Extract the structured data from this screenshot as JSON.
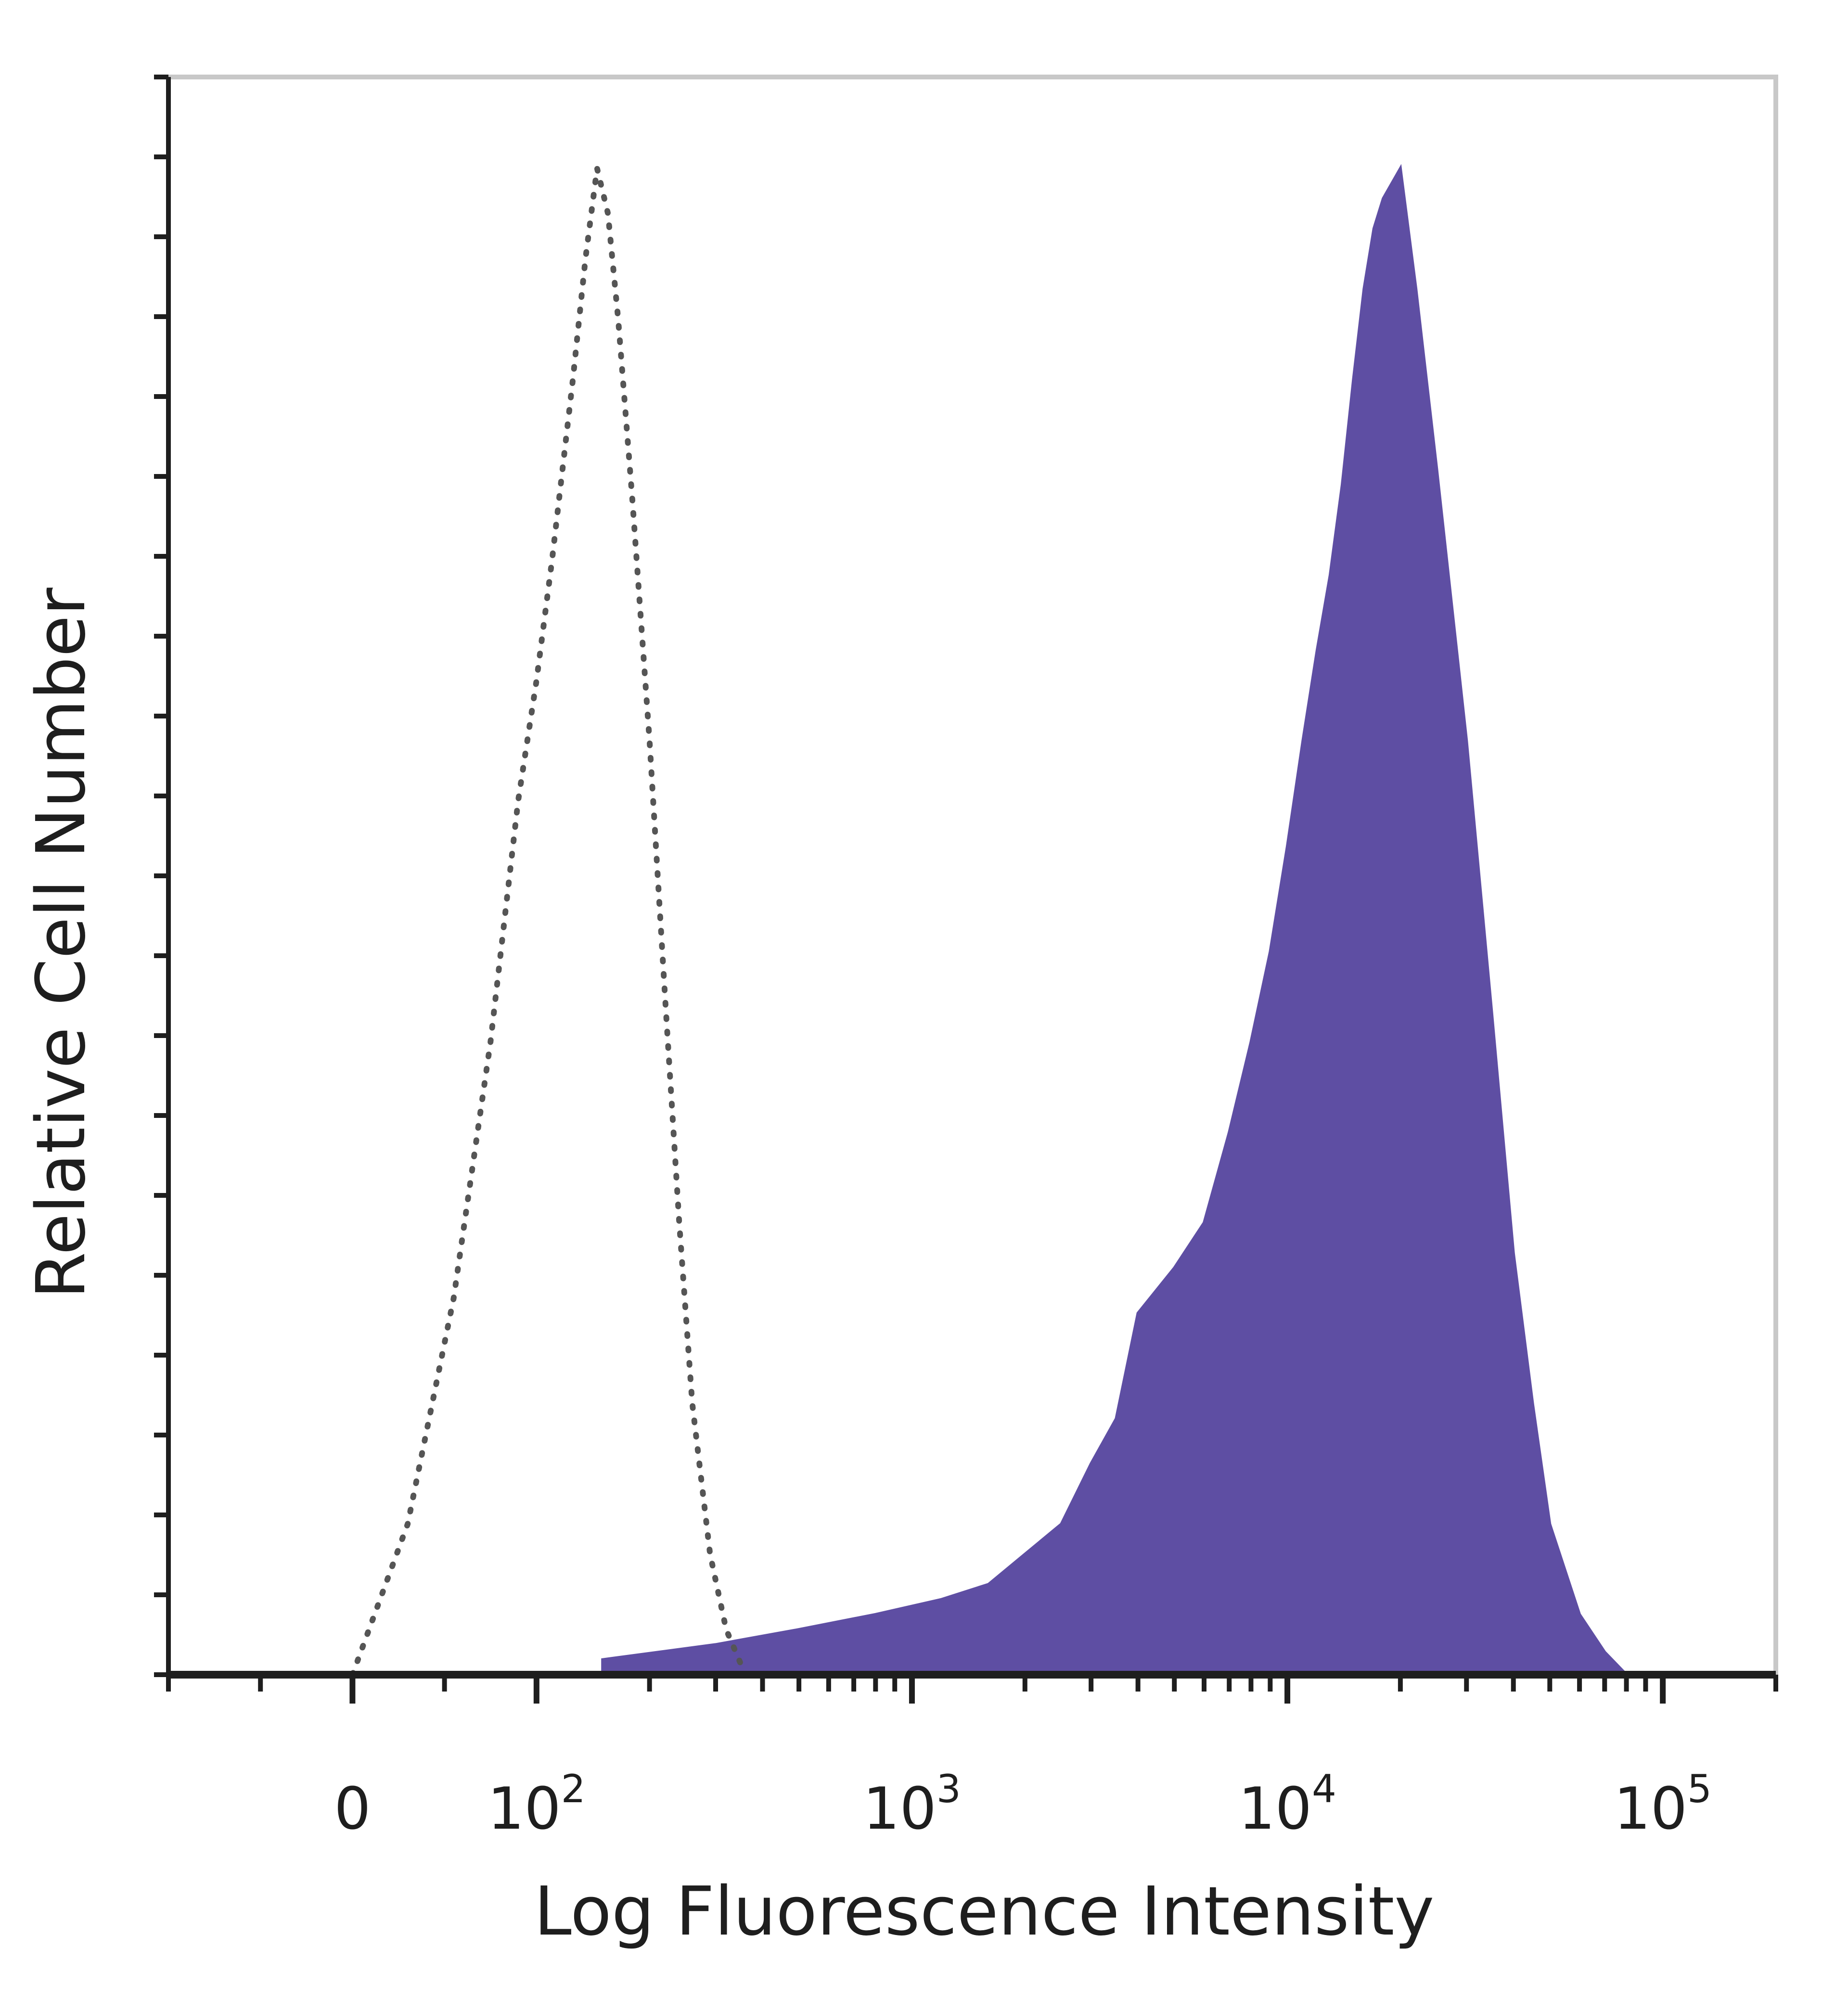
{
  "chart_data": {
    "type": "area",
    "xlabel": "Log Fluorescence Intensity",
    "ylabel": "Relative Cell Number",
    "x_scale": "biexponential",
    "xlim": [
      -100,
      200000
    ],
    "ylim": [
      0,
      100
    ],
    "x_tick_labels": [
      {
        "value": 0,
        "base": "0",
        "exp": ""
      },
      {
        "value": 100,
        "base": "10",
        "exp": "2"
      },
      {
        "value": 1000,
        "base": "10",
        "exp": "3"
      },
      {
        "value": 10000,
        "base": "10",
        "exp": "4"
      },
      {
        "value": 100000,
        "base": "10",
        "exp": "5"
      }
    ],
    "grid": false,
    "legend": "none",
    "series": [
      {
        "style": "dotted-outline",
        "color": "#555555",
        "x": [
          0,
          30,
          55,
          75,
          90,
          100,
          110,
          125,
          135,
          145,
          155,
          165,
          180,
          200,
          220,
          240,
          260,
          290,
          320,
          360
        ],
        "y": [
          0,
          10,
          25,
          42,
          58,
          66,
          74,
          86,
          94,
          100,
          97,
          90,
          78,
          62,
          45,
          30,
          18,
          8,
          3,
          0
        ]
      },
      {
        "style": "filled",
        "color": "#5e4ea3",
        "x": [
          150,
          300,
          500,
          800,
          1200,
          1600,
          2000,
          2500,
          3000,
          3500,
          4000,
          5000,
          6000,
          7000,
          8000,
          9000,
          10000,
          11000,
          12000,
          13000,
          14000,
          15000,
          16000,
          17000,
          18000,
          20000,
          22000,
          25000,
          30000,
          35000,
          40000,
          45000,
          50000,
          60000,
          70000,
          80000
        ],
        "y": [
          1,
          2,
          3,
          4,
          5,
          6,
          8,
          10,
          14,
          17,
          24,
          27,
          30,
          36,
          42,
          48,
          55,
          62,
          68,
          73,
          79,
          86,
          92,
          96,
          98,
          100,
          92,
          80,
          62,
          44,
          28,
          18,
          10,
          4,
          1.5,
          0
        ]
      }
    ]
  }
}
